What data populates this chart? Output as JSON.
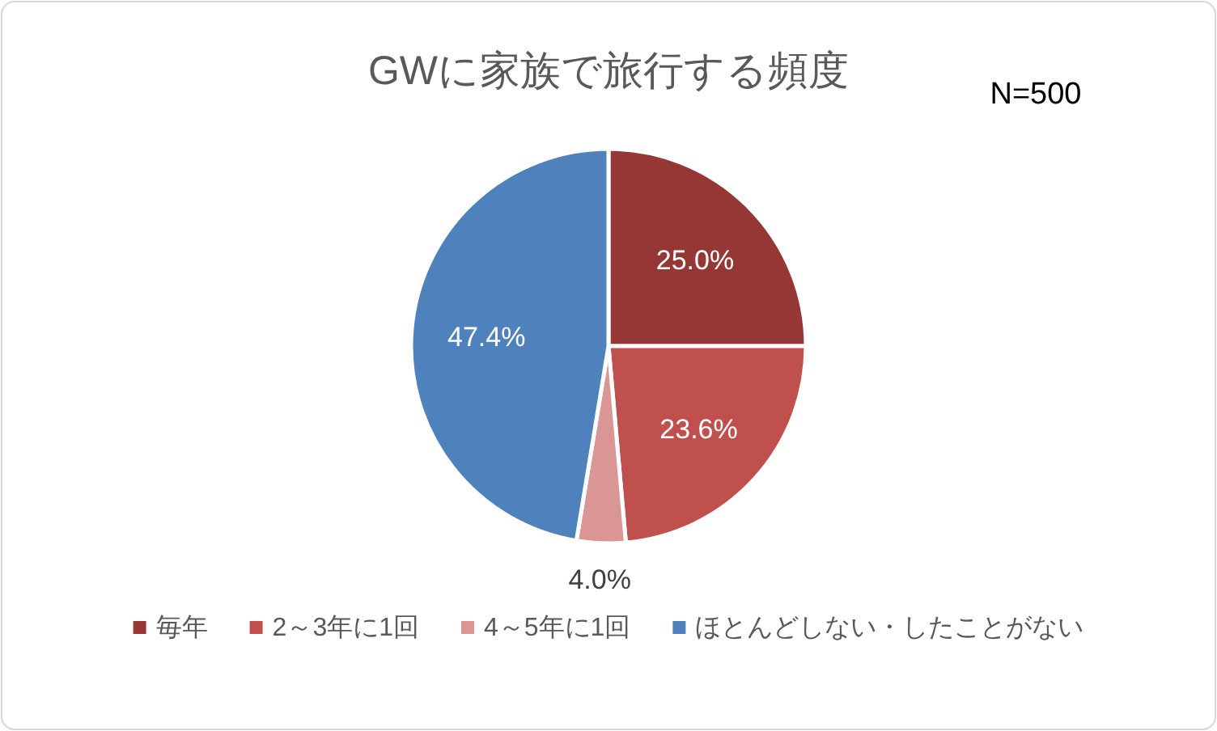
{
  "chart_data": {
    "type": "pie",
    "title": "GWに家族で旅行する頻度",
    "annotations": [
      "N=500"
    ],
    "categories": [
      "毎年",
      "2～3年に1回",
      "4～5年に1回",
      "ほとんどしない・したことがない"
    ],
    "values": [
      25.0,
      23.6,
      4.0,
      47.4
    ],
    "value_labels": [
      "25.0%",
      "23.6%",
      "4.0%",
      "47.4%"
    ],
    "colors": [
      "#953735",
      "#c0504d",
      "#d99694",
      "#4f81bd"
    ],
    "legend": "bottom"
  }
}
